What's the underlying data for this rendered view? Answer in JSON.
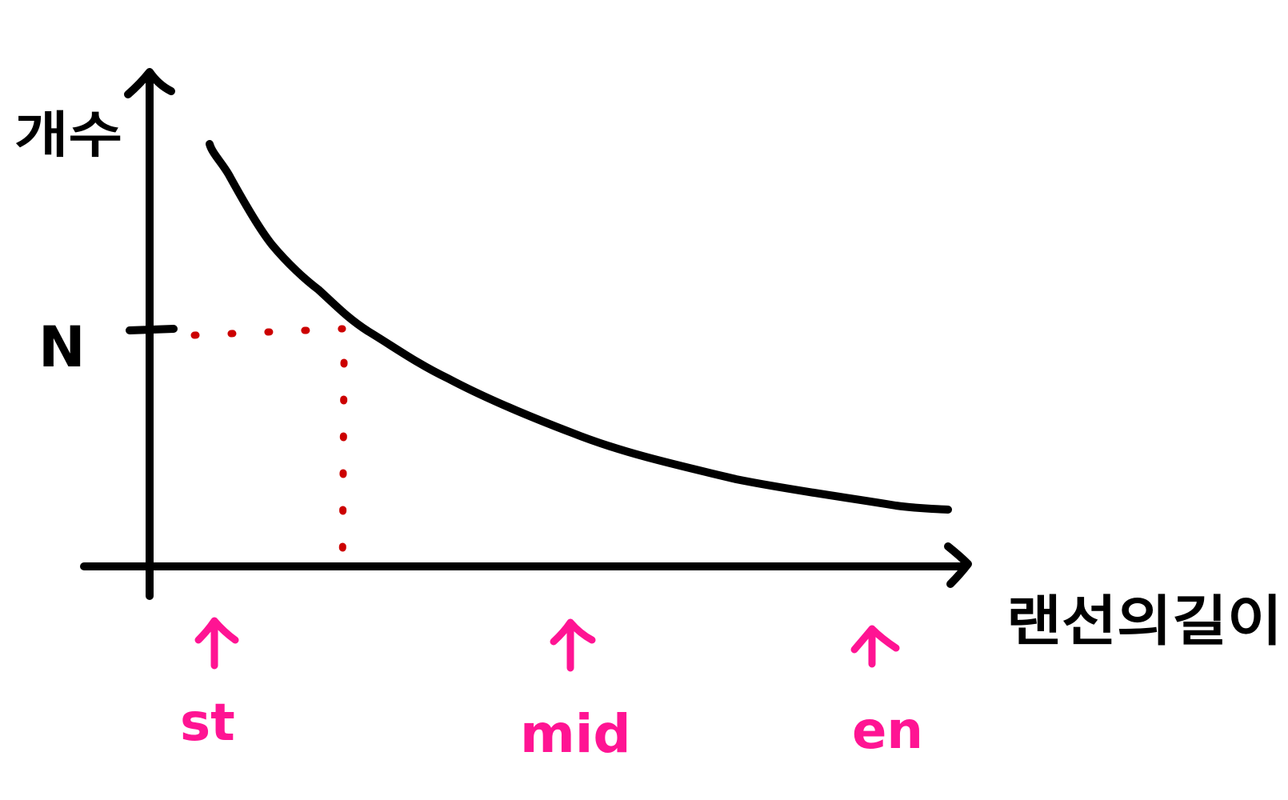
{
  "axes": {
    "y_label": "개수",
    "x_label": "랜선의길이",
    "y_tick_label": "N"
  },
  "markers": [
    {
      "label": "st"
    },
    {
      "label": "mid"
    },
    {
      "label": "en"
    }
  ],
  "colors": {
    "ink": "#000000",
    "guide": "#cc0000",
    "marker": "#ff1493"
  },
  "curve": {
    "type": "decreasing-curve"
  }
}
